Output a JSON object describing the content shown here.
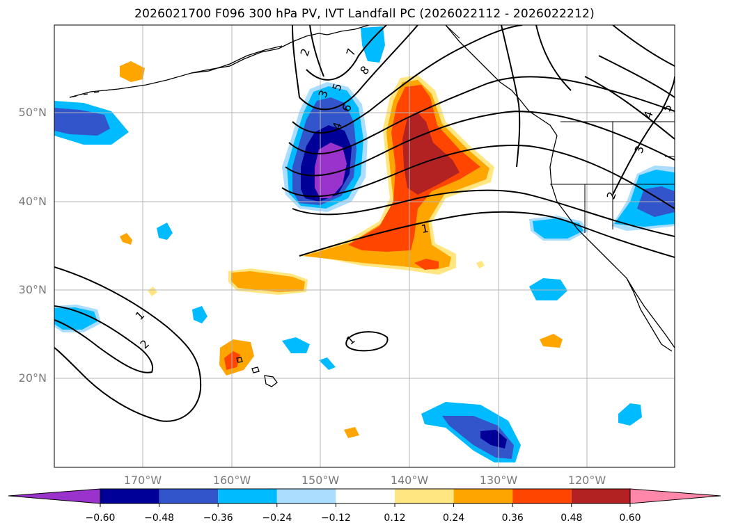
{
  "title": "2026021700 F096 300 hPa PV, IVT Landfall PC (2026022112 - 2026022212)",
  "axes": {
    "lat_labels": [
      "50°N",
      "40°N",
      "30°N",
      "20°N"
    ],
    "lon_labels": [
      "170°W",
      "160°W",
      "150°W",
      "140°W",
      "130°W",
      "120°W"
    ]
  },
  "colorbar": {
    "ticks": [
      "−0.60",
      "−0.48",
      "−0.36",
      "−0.24",
      "−0.12",
      "0.12",
      "0.24",
      "0.36",
      "0.48",
      "0.60"
    ],
    "colors": [
      "#9933cc",
      "#000099",
      "#3355cc",
      "#00bbff",
      "#aaddff",
      "#ffffff",
      "#ffe680",
      "#ffa500",
      "#ff4500",
      "#b22222",
      "#ff88aa"
    ]
  },
  "contour_labels": [
    "1",
    "2",
    "3",
    "4",
    "5",
    "6",
    "7",
    "8",
    "1",
    "2",
    "3",
    "4",
    "5",
    "1",
    "2",
    "1"
  ]
}
